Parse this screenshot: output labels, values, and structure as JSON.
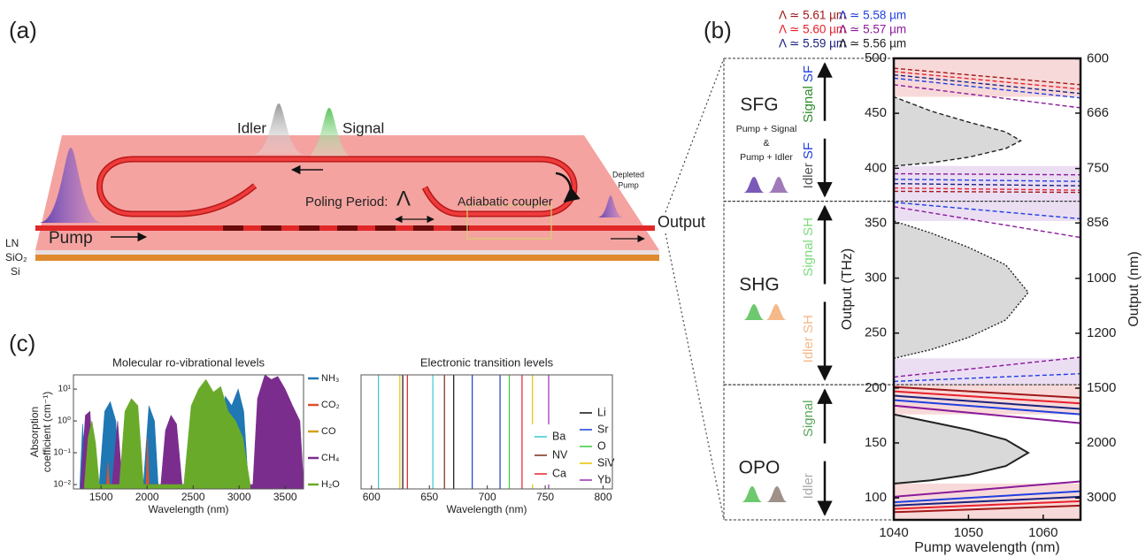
{
  "panels": {
    "a": "(a)",
    "b": "(b)",
    "c": "(c)"
  },
  "device": {
    "idler": "Idler",
    "signal": "Signal",
    "pump": "Pump",
    "poling": "Poling Period:",
    "period_symbol": "Λ",
    "coupler": "Adiabatic coupler",
    "depleted": [
      "Depleted",
      "Pump"
    ],
    "layers": [
      "LN",
      "SiO₂",
      "Si"
    ],
    "output": "Output"
  },
  "chart_data": [
    {
      "type": "line",
      "x_label": "Pump wavelength (nm)",
      "y_label": "Output (THz)",
      "y2_label": "Output (nm)",
      "xlim": [
        1040,
        1065
      ],
      "xticks": [
        1040,
        1050,
        1060
      ],
      "ylim": [
        80,
        500
      ],
      "yticks": [
        100,
        150,
        200,
        250,
        300,
        350,
        400,
        450,
        500
      ],
      "y2scale": "inverse",
      "y2lim": [
        3747,
        599.6
      ],
      "y2ticks": [
        600,
        666,
        750,
        856,
        1000,
        1200,
        1500,
        2000,
        3000
      ],
      "legend": "top",
      "regions": [
        {
          "label": "OPO",
          "upper": [
            {
              "text": "Signal",
              "color": "#5aa55a"
            }
          ],
          "lower": [
            {
              "text": "Idler",
              "color": "#aaaaaa"
            }
          ],
          "from": 80,
          "to": 203
        },
        {
          "label": "SHG",
          "upper": [
            {
              "text": "Signal SH",
              "color": "#7ddc7d"
            }
          ],
          "lower": [
            {
              "text": "Idler SH",
              "color": "#f5b98a"
            }
          ],
          "from": 203,
          "to": 370
        },
        {
          "label": "SFG",
          "upper": [
            {
              "text": "Signal",
              "color": "#2e8b2e"
            },
            {
              "text": "SF",
              "color": "#1f3fe0"
            }
          ],
          "lower": [
            {
              "text": "Idler",
              "color": "#555555"
            },
            {
              "text": "SF",
              "color": "#1f3fe0"
            }
          ],
          "note": [
            "Pump + Signal",
            "&",
            "Pump + Idler"
          ],
          "from": 370,
          "to": 500
        }
      ],
      "bands": [
        {
          "from": 176,
          "to": 203,
          "color": "#f6cfcf"
        },
        {
          "from": 80,
          "to": 113,
          "color": "#f6cfcf"
        },
        {
          "from": 203,
          "to": 227,
          "color": "#e6d6f0"
        },
        {
          "from": 352,
          "to": 370,
          "color": "#e6d6f0"
        },
        {
          "from": 370,
          "to": 402,
          "color": "#e6d6f0"
        },
        {
          "from": 465,
          "to": 500,
          "color": "#f6cfcf"
        }
      ],
      "series": [
        {
          "name": "Λ ≃ 5.61 µm",
          "color": "#a01818",
          "segments": [
            {
              "dash": "solid",
              "x": [
                1040,
                1065
              ],
              "values": [
                201,
                191
              ]
            },
            {
              "dash": "solid",
              "x": [
                1040,
                1065
              ],
              "values": [
                87,
                93
              ]
            },
            {
              "dash": "dashed",
              "x": [
                1040,
                1065
              ],
              "values": [
                491,
                476
              ]
            },
            {
              "dash": "dashed",
              "x": [
                1040,
                1065
              ],
              "values": [
                379,
                378
              ]
            }
          ]
        },
        {
          "name": "Λ ≃ 5.60 µm",
          "color": "#e8202a",
          "segments": [
            {
              "dash": "solid",
              "x": [
                1040,
                1065
              ],
              "values": [
                197,
                186
              ]
            },
            {
              "dash": "solid",
              "x": [
                1040,
                1065
              ],
              "values": [
                90,
                97
              ]
            },
            {
              "dash": "dashed",
              "x": [
                1040,
                1065
              ],
              "values": [
                488,
                472
              ]
            },
            {
              "dash": "dashed",
              "x": [
                1040,
                1065
              ],
              "values": [
                382,
                380
              ]
            }
          ]
        },
        {
          "name": "Λ ≃ 5.59 µm",
          "color": "#1a237e",
          "segments": [
            {
              "dash": "solid",
              "x": [
                1040,
                1065
              ],
              "values": [
                193,
                181
              ]
            },
            {
              "dash": "solid",
              "x": [
                1040,
                1065
              ],
              "values": [
                93,
                101
              ]
            },
            {
              "dash": "dashed",
              "x": [
                1040,
                1065
              ],
              "values": [
                485,
                468
              ]
            },
            {
              "dash": "dashed",
              "x": [
                1040,
                1065
              ],
              "values": [
                386,
                384
              ]
            }
          ]
        },
        {
          "name": "Λ ≃ 5.58 µm",
          "color": "#1f3fe0",
          "segments": [
            {
              "dash": "solid",
              "x": [
                1040,
                1065
              ],
              "values": [
                189,
                176
              ]
            },
            {
              "dash": "solid",
              "x": [
                1040,
                1065
              ],
              "values": [
                96,
                106
              ]
            },
            {
              "dash": "dashed",
              "x": [
                1040,
                1065
              ],
              "values": [
                206,
                213
              ]
            },
            {
              "dash": "dashed",
              "x": [
                1040,
                1065
              ],
              "values": [
                369,
                354
              ]
            },
            {
              "dash": "dashed",
              "x": [
                1040,
                1065
              ],
              "values": [
                482,
                464
              ]
            },
            {
              "dash": "dashed",
              "x": [
                1040,
                1065
              ],
              "values": [
                390,
                388
              ]
            }
          ]
        },
        {
          "name": "Λ ≃ 5.57 µm",
          "color": "#8b1a9b",
          "segments": [
            {
              "dash": "solid",
              "x": [
                1040,
                1065
              ],
              "values": [
                184,
                168
              ]
            },
            {
              "dash": "solid",
              "x": [
                1040,
                1065
              ],
              "values": [
                101,
                115
              ]
            },
            {
              "dash": "dashed",
              "x": [
                1040,
                1065
              ],
              "values": [
                210,
                228
              ]
            },
            {
              "dash": "dashed",
              "x": [
                1040,
                1065
              ],
              "values": [
                365,
                337
              ]
            },
            {
              "dash": "dashed",
              "x": [
                1040,
                1065
              ],
              "values": [
                476,
                455
              ]
            },
            {
              "dash": "dashed",
              "x": [
                1040,
                1065
              ],
              "values": [
                395,
                394
              ]
            }
          ]
        },
        {
          "name": "Λ ≃ 5.56 µm",
          "color": "#222222",
          "segments": [
            {
              "dash": "solid",
              "fill": "#d9d9d9",
              "x": [
                1040,
                1045,
                1050,
                1055,
                1058,
                1055,
                1050,
                1045,
                1040
              ],
              "values": [
                113,
                116,
                121,
                129,
                141,
                153,
                162,
                169,
                176
              ]
            },
            {
              "dash": "dotted",
              "fill": "#d9d9d9",
              "x": [
                1040,
                1045,
                1050,
                1055,
                1058,
                1055,
                1050,
                1045,
                1040
              ],
              "values": [
                227,
                235,
                246,
                262,
                287,
                312,
                328,
                341,
                352
              ]
            },
            {
              "dash": "dashed",
              "fill": "#d9d9d9",
              "x": [
                1040,
                1045,
                1050,
                1055,
                1057,
                1055,
                1050,
                1045,
                1040
              ],
              "values": [
                402,
                405,
                410,
                418,
                425,
                433,
                442,
                452,
                465
              ]
            }
          ]
        }
      ]
    },
    {
      "type": "area",
      "title": "Molecular ro-vibrational levels",
      "x_label": "Wavelength (nm)",
      "y_label": [
        "Absorption",
        "coefficient (cm⁻¹)"
      ],
      "xlim": [
        1200,
        3700
      ],
      "xticks": [
        1500,
        2000,
        2500,
        3000,
        3500
      ],
      "log_y": true,
      "ylim": [
        0.0073,
        28
      ],
      "yticks": [
        {
          "value": 0.01,
          "label": "10⁻²"
        },
        {
          "value": 0.1,
          "label": "10⁻¹"
        },
        {
          "value": 1,
          "label": "10⁰"
        },
        {
          "value": 10,
          "label": "10¹"
        }
      ],
      "legend": "right",
      "series": [
        {
          "name": "NH₃",
          "color": "#1f77b4",
          "x": [
            1270,
            1300,
            1330,
            1360,
            1480,
            1540,
            1600,
            1660,
            1700,
            1900,
            1960,
            2020,
            2080,
            2120,
            2700,
            2780,
            2850,
            2920,
            2990,
            3050,
            3100,
            3250,
            3320,
            3400,
            3480,
            3550
          ],
          "values": [
            0.01,
            0.8,
            0.02,
            null,
            0.01,
            2,
            4,
            1,
            0.01,
            null,
            0.01,
            3,
            1,
            0.01,
            null,
            0.01,
            6,
            3,
            10,
            2,
            0.01,
            null,
            2,
            8,
            1,
            0.01
          ]
        },
        {
          "name": "CO₂",
          "color": "#e0502a",
          "x": [
            1560,
            1575,
            1590,
            1990,
            2005,
            2020,
            2680,
            2700,
            2720
          ],
          "values": [
            0.01,
            0.05,
            0.01,
            0.01,
            0.3,
            0.01,
            0.01,
            0.5,
            0.01
          ]
        },
        {
          "name": "CO",
          "color": "#d4a017",
          "x": [
            2300,
            2330,
            2360
          ],
          "values": [
            0.01,
            0.2,
            0.01
          ]
        },
        {
          "name": "CH₄",
          "color": "#7b2d8e",
          "x": [
            1280,
            1330,
            1380,
            1420,
            1560,
            1620,
            1680,
            1730,
            2150,
            2200,
            2260,
            2320,
            2380,
            3150,
            3200,
            3280,
            3350,
            3420,
            3500,
            3580,
            3660,
            3700
          ],
          "values": [
            0.01,
            1.5,
            2,
            0.01,
            null,
            0.01,
            1,
            0.01,
            0.01,
            0.5,
            1.5,
            0.8,
            0.01,
            0.01,
            5,
            28,
            20,
            25,
            10,
            3,
            1,
            0.01
          ]
        },
        {
          "name": "H₂O",
          "color": "#6aaa2a",
          "x": [
            1320,
            1360,
            1400,
            1440,
            1480,
            1700,
            1760,
            1830,
            1900,
            1960,
            2400,
            2480,
            2560,
            2640,
            2720,
            2800,
            2880,
            2960,
            3040,
            3120
          ],
          "values": [
            0.01,
            0.3,
            1,
            0.2,
            0.01,
            0.01,
            2,
            5,
            3,
            0.01,
            0.01,
            3,
            10,
            20,
            8,
            12,
            2,
            1,
            0.3,
            0.01
          ]
        }
      ]
    },
    {
      "type": "rule",
      "title": "Electronic transition levels",
      "x_label": "Wavelength (nm)",
      "xlim": [
        591,
        808
      ],
      "xticks": [
        600,
        650,
        700,
        750,
        800
      ],
      "legend": "right",
      "series": [
        {
          "name": "Ba",
          "color": "#38c8d0",
          "x": [
            606,
            653
          ]
        },
        {
          "name": "NV",
          "color": "#7a2a1a",
          "x": [
            663
          ]
        },
        {
          "name": "Ca",
          "color": "#e8202a",
          "x": [
            631,
            730
          ]
        },
        {
          "name": "Li",
          "color": "#111111",
          "x": [
            627,
            671
          ]
        },
        {
          "name": "Sr",
          "color": "#1a3fd0",
          "x": [
            687,
            711
          ]
        },
        {
          "name": "O",
          "color": "#3cc83c",
          "x": [
            719
          ]
        },
        {
          "name": "SiV",
          "color": "#e8c000",
          "x": [
            624.5,
            739
          ]
        },
        {
          "name": "Yb",
          "color": "#9a2ab0",
          "x": [
            753
          ]
        }
      ]
    }
  ]
}
